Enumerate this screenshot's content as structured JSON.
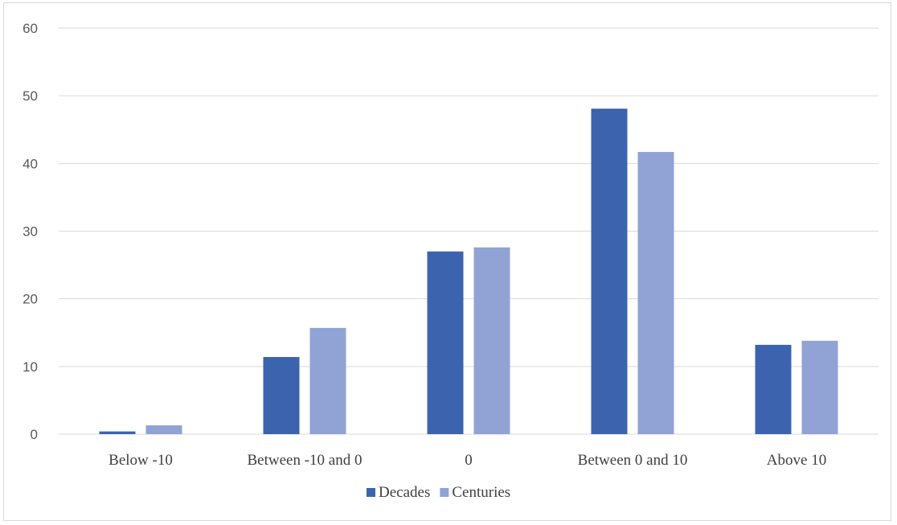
{
  "chart_data": {
    "type": "bar",
    "title": "",
    "xlabel": "",
    "ylabel": "",
    "categories": [
      "Below -10",
      "Between -10 and 0",
      "0",
      "Between 0 and 10",
      "Above 10"
    ],
    "series": [
      {
        "name": "Decades",
        "values": [
          0.4,
          11.4,
          27.0,
          48.1,
          13.2
        ],
        "color": "#3c64ae"
      },
      {
        "name": "Centuries",
        "values": [
          1.3,
          15.7,
          27.6,
          41.7,
          13.8
        ],
        "color": "#91a3d4"
      }
    ],
    "ylim": [
      0,
      60
    ],
    "yticks": [
      "0",
      "10",
      "20",
      "30",
      "40",
      "50",
      "60"
    ],
    "grid": true,
    "legend_position": "bottom",
    "gridline_color": "#d9d9d9"
  }
}
